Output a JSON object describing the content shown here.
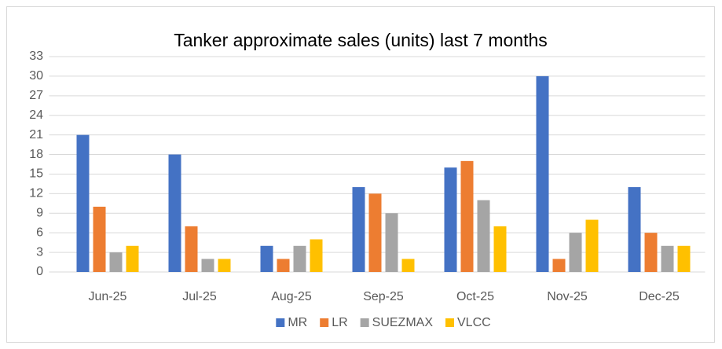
{
  "chart_data": {
    "type": "bar",
    "title": "Tanker approximate sales (units) last 7 months",
    "categories": [
      "Jun-25",
      "Jul-25",
      "Aug-25",
      "Sep-25",
      "Oct-25",
      "Nov-25",
      "Dec-25"
    ],
    "series": [
      {
        "name": "MR",
        "color": "#4472c4",
        "values": [
          21,
          18,
          4,
          13,
          16,
          30,
          13
        ]
      },
      {
        "name": "LR",
        "color": "#ed7d31",
        "values": [
          10,
          7,
          2,
          12,
          17,
          2,
          6
        ]
      },
      {
        "name": "SUEZMAX",
        "color": "#a5a5a5",
        "values": [
          3,
          2,
          4,
          9,
          11,
          6,
          4
        ]
      },
      {
        "name": "VLCC",
        "color": "#ffc000",
        "values": [
          4,
          2,
          5,
          2,
          7,
          8,
          4
        ]
      }
    ],
    "ylim": [
      0,
      33
    ],
    "yticks": [
      0,
      3,
      6,
      9,
      12,
      15,
      18,
      21,
      24,
      27,
      30,
      33
    ],
    "grid": true,
    "legend": "bottom"
  }
}
